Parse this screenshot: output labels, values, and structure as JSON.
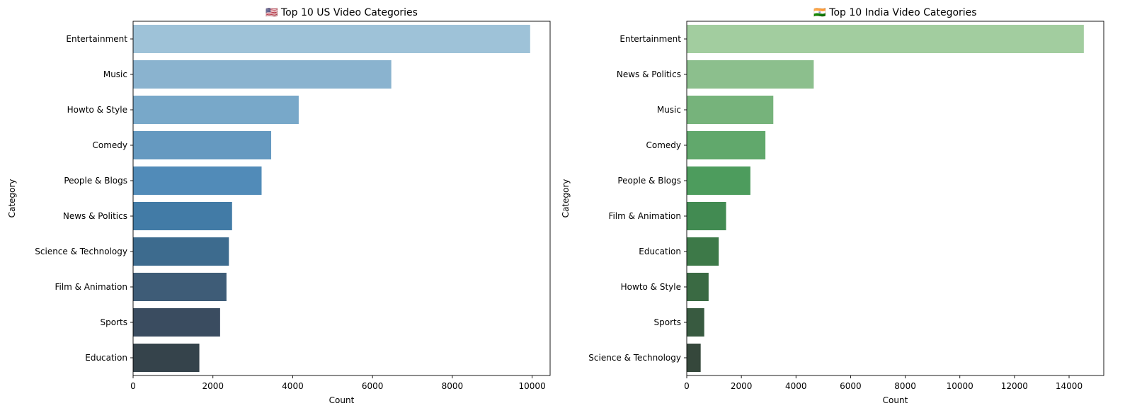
{
  "chart_data": [
    {
      "type": "bar",
      "orientation": "horizontal",
      "title": "🇺🇸 Top 10 US Video Categories",
      "xlabel": "Count",
      "ylabel": "Category",
      "xlim": [
        0,
        10450
      ],
      "xticks": [
        0,
        2000,
        4000,
        6000,
        8000,
        10000
      ],
      "categories": [
        "Entertainment",
        "Music",
        "Howto & Style",
        "Comedy",
        "People & Blogs",
        "News & Politics",
        "Science & Technology",
        "Film & Animation",
        "Sports",
        "Education"
      ],
      "values": [
        9950,
        6470,
        4150,
        3460,
        3220,
        2480,
        2400,
        2340,
        2180,
        1660
      ],
      "colors": [
        "#9ec2d8",
        "#8ab3cf",
        "#78a8c9",
        "#6599c0",
        "#518bb8",
        "#427ba6",
        "#3d6b8e",
        "#3e5c77",
        "#3a4c60",
        "#35434b"
      ],
      "grid": false,
      "legend": "none"
    },
    {
      "type": "bar",
      "orientation": "horizontal",
      "title": "🇮🇳 Top 10 India Video Categories",
      "xlabel": "Count",
      "ylabel": "Category",
      "xlim": [
        0,
        15270
      ],
      "xticks": [
        0,
        2000,
        4000,
        6000,
        8000,
        10000,
        12000,
        14000
      ],
      "categories": [
        "Entertainment",
        "News & Politics",
        "Music",
        "Comedy",
        "People & Blogs",
        "Film & Animation",
        "Education",
        "Howto & Style",
        "Sports",
        "Science & Technology"
      ],
      "values": [
        14540,
        4650,
        3170,
        2880,
        2330,
        1440,
        1170,
        800,
        640,
        510
      ],
      "colors": [
        "#a2cd9f",
        "#8cbf8d",
        "#76b37b",
        "#61a86c",
        "#4d9c5d",
        "#428b52",
        "#3d7948",
        "#3a6a43",
        "#385a40",
        "#35473b"
      ],
      "grid": false,
      "legend": "none"
    }
  ]
}
